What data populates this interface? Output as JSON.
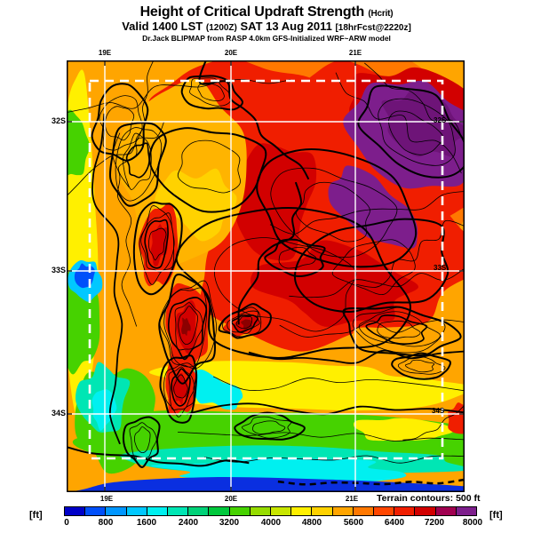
{
  "title": {
    "main": "Height of Critical Updraft Strength",
    "suffix": "(Hcrit)"
  },
  "valid_line": {
    "p1": "Valid 1400 LST",
    "p2": "(1200Z)",
    "p3": "SAT 13 Aug 2011",
    "p4": "[18hrFcst@2220z]"
  },
  "credit_line": "Dr.Jack BLIPMAP from RASP 4.0km GFS-Initialized WRF~ARW model",
  "map": {
    "x_ticks": [
      "19E",
      "20E",
      "21E"
    ],
    "y_ticks": [
      "32S",
      "33S",
      "34S"
    ],
    "terrain_note": "Terrain contours: 500 ft"
  },
  "colorbar": {
    "unit": "[ft]",
    "tick_labels": [
      "0",
      "800",
      "1600",
      "2400",
      "3200",
      "4000",
      "4800",
      "5600",
      "6400",
      "7200",
      "8000"
    ],
    "colors": [
      "#0000C8",
      "#004FFA",
      "#0096FF",
      "#00C8FF",
      "#00F0F0",
      "#00E6B4",
      "#00D278",
      "#00C83C",
      "#46D200",
      "#96DC00",
      "#C8E600",
      "#FFF000",
      "#FFD200",
      "#FFA500",
      "#FF7800",
      "#FF4600",
      "#F01E00",
      "#D20000",
      "#A00050",
      "#7D1E8C"
    ]
  }
}
